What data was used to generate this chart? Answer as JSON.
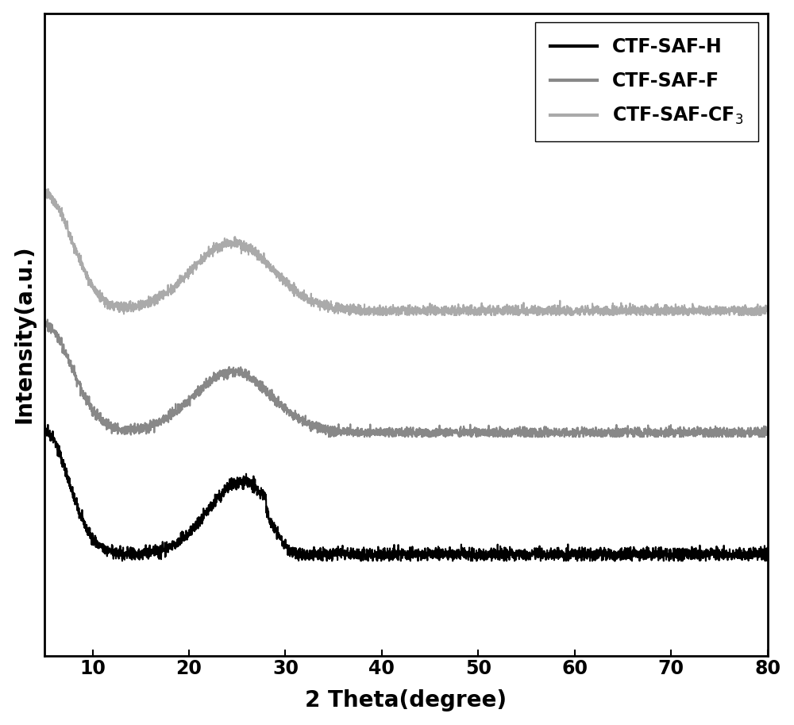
{
  "xlabel": "2 Theta(degree)",
  "ylabel": "Intensity(a.u.)",
  "xlim": [
    5,
    80
  ],
  "xticks": [
    10,
    20,
    30,
    40,
    50,
    60,
    70,
    80
  ],
  "series": [
    {
      "label": "CTF-SAF-H",
      "color": "#000000",
      "linewidth": 1.5
    },
    {
      "label": "CTF-SAF-F",
      "color": "#888888",
      "linewidth": 1.5
    },
    {
      "label": "CTF-SAF-CF$_3$",
      "color": "#aaaaaa",
      "linewidth": 1.5
    }
  ],
  "legend_fontsize": 17,
  "axis_label_fontsize": 20,
  "tick_fontsize": 17,
  "figsize": [
    10.0,
    9.13
  ],
  "dpi": 100,
  "background_color": "#ffffff",
  "ylim": [
    -0.35,
    2.5
  ]
}
